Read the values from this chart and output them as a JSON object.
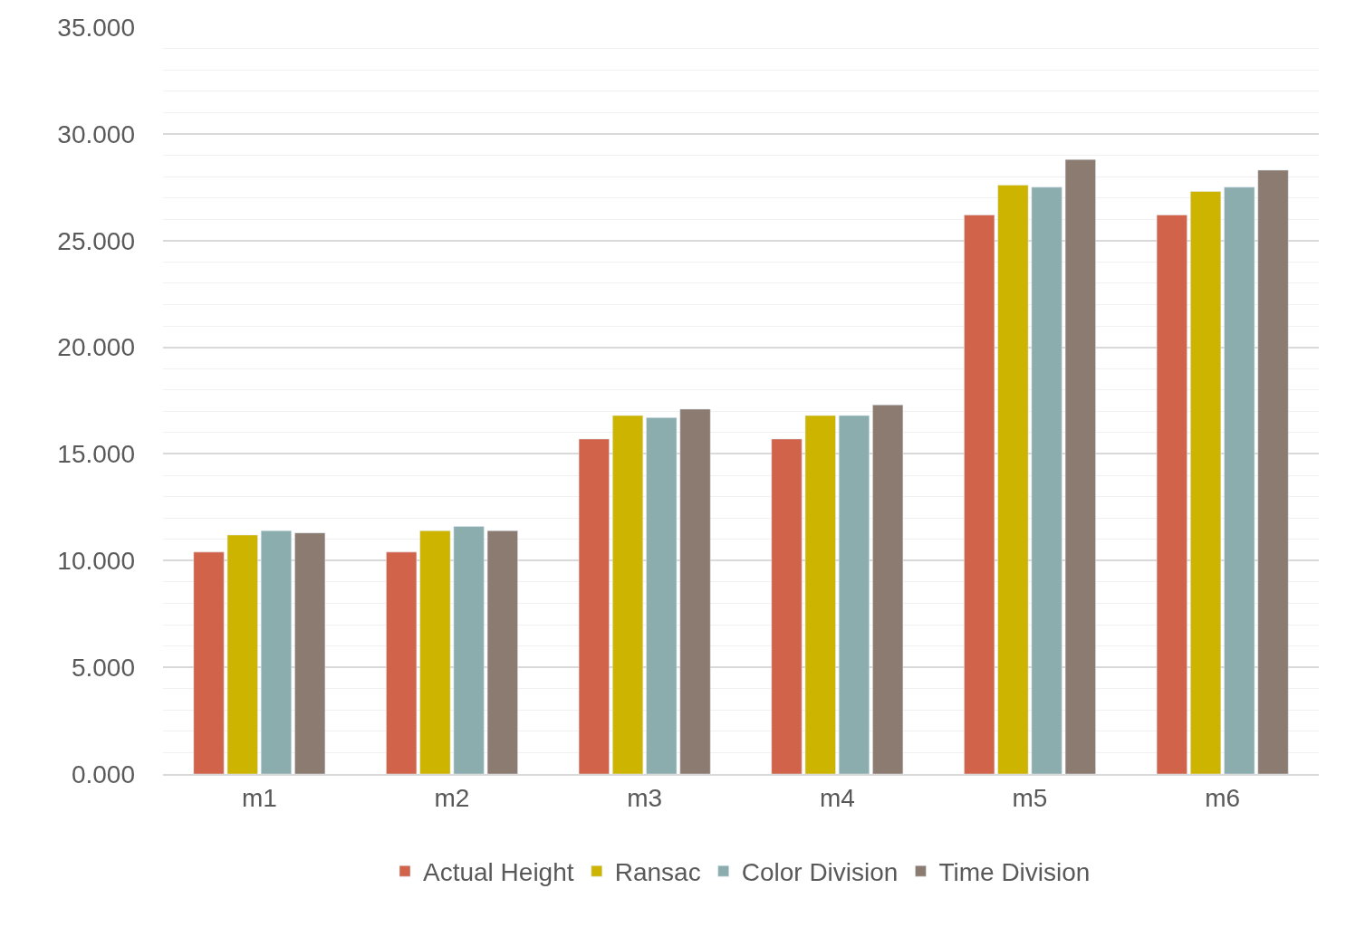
{
  "chart_data": {
    "type": "bar",
    "categories": [
      "m1",
      "m2",
      "m3",
      "m4",
      "m5",
      "m6"
    ],
    "series": [
      {
        "name": "Actual Height",
        "color": "#d0634a",
        "values": [
          10.4,
          10.4,
          15.7,
          15.7,
          26.2,
          26.2
        ]
      },
      {
        "name": "Ransac",
        "color": "#ccb400",
        "values": [
          11.2,
          11.4,
          16.8,
          16.8,
          27.6,
          27.3
        ]
      },
      {
        "name": "Color Division",
        "color": "#8badae",
        "values": [
          11.4,
          11.6,
          16.7,
          16.8,
          27.5,
          27.5
        ]
      },
      {
        "name": "Time Division",
        "color": "#8c7b70",
        "values": [
          11.3,
          11.4,
          17.1,
          17.3,
          28.8,
          28.3
        ]
      }
    ],
    "ylim": [
      0,
      35
    ],
    "yticks": [
      {
        "value": 0,
        "label": "0.000"
      },
      {
        "value": 5,
        "label": "5.000"
      },
      {
        "value": 10,
        "label": "10.000"
      },
      {
        "value": 15,
        "label": "15.000"
      },
      {
        "value": 20,
        "label": "20.000"
      },
      {
        "value": 25,
        "label": "25.000"
      },
      {
        "value": 30,
        "label": "30.000"
      },
      {
        "value": 35,
        "label": "35.000"
      }
    ],
    "grid": "y",
    "legend": "bottom"
  }
}
